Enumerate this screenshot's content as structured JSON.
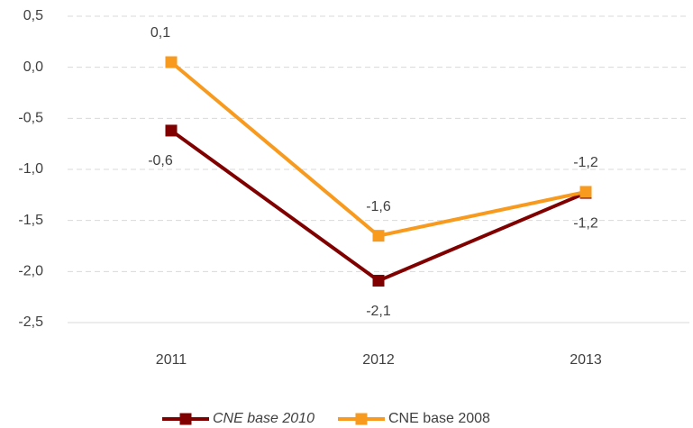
{
  "chart_data": {
    "type": "line",
    "categories": [
      "2011",
      "2012",
      "2013"
    ],
    "series": [
      {
        "name": "CNE base 2010",
        "color": "#800000",
        "values": [
          -0.62,
          -2.09,
          -1.23
        ],
        "value_labels": [
          "-0,6",
          "-2,1",
          "-1,2"
        ]
      },
      {
        "name": "CNE base 2008",
        "color": "#f79a1e",
        "values": [
          0.05,
          -1.65,
          -1.22
        ],
        "value_labels": [
          "0,1",
          "-1,6",
          "-1,2"
        ]
      }
    ],
    "ylim": [
      -2.5,
      0.5
    ],
    "yticks": [
      {
        "value": 0.5,
        "label": "0,5"
      },
      {
        "value": 0.0,
        "label": "0,0"
      },
      {
        "value": -0.5,
        "label": "-0,5"
      },
      {
        "value": -1.0,
        "label": "-1,0"
      },
      {
        "value": -1.5,
        "label": "-1,5"
      },
      {
        "value": -2.0,
        "label": "-2,0"
      },
      {
        "value": -2.5,
        "label": "-2,5"
      }
    ],
    "grid": true,
    "legend": "bottom"
  }
}
